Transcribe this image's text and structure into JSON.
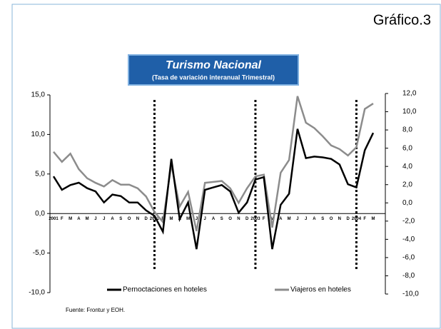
{
  "chart_data": {
    "type": "line",
    "figure_label": "Gráfico.3",
    "title": "Turismo Nacional",
    "subtitle": "(Tasa de variación interanual Trimestral)",
    "source": "Fuente: Frontur y EOH.",
    "categories": [
      "2001",
      "F",
      "M",
      "A",
      "M",
      "J",
      "J",
      "A",
      "S",
      "O",
      "N",
      "D",
      "2002",
      "F",
      "M",
      "A",
      "M",
      "J",
      "J",
      "A",
      "S",
      "O",
      "N",
      "D",
      "2003",
      "F",
      "M",
      "A",
      "M",
      "J",
      "J",
      "A",
      "S",
      "O",
      "N",
      "D",
      "2004",
      "F",
      "M"
    ],
    "series": [
      {
        "name": "Pernoctaciones en hoteles",
        "color": "#000000",
        "axis": "y",
        "values": [
          4.7,
          3.0,
          3.6,
          3.9,
          3.2,
          2.8,
          1.4,
          2.4,
          2.2,
          1.4,
          1.4,
          0.4,
          -0.3,
          -2.3,
          6.9,
          -0.7,
          1.4,
          -4.5,
          3.0,
          3.3,
          3.6,
          2.8,
          0.1,
          1.4,
          4.3,
          4.6,
          -4.5,
          1.1,
          2.5,
          10.7,
          7.0,
          7.2,
          7.1,
          6.9,
          6.2,
          3.7,
          3.3,
          8.0,
          10.2
        ]
      },
      {
        "name": "Viajeros en hoteles",
        "color": "#8c8c8c",
        "axis": "y2",
        "values": [
          5.6,
          4.5,
          5.4,
          3.7,
          2.7,
          2.2,
          1.8,
          2.5,
          2.0,
          2.0,
          1.6,
          0.7,
          -1.0,
          -2.1,
          4.2,
          -0.4,
          1.2,
          -3.1,
          2.2,
          2.3,
          2.4,
          1.6,
          0.0,
          1.6,
          2.9,
          3.1,
          -2.7,
          3.3,
          4.7,
          11.7,
          8.8,
          8.2,
          7.3,
          6.3,
          5.9,
          5.2,
          6.1,
          10.3,
          10.9
        ]
      }
    ],
    "ylim": [
      -10,
      15
    ],
    "yticks": [
      {
        "value": -10,
        "label": "-10,0"
      },
      {
        "value": -5,
        "label": "-5,0"
      },
      {
        "value": 0,
        "label": "0,0"
      },
      {
        "value": 5,
        "label": "5,0"
      },
      {
        "value": 10,
        "label": "10,0"
      },
      {
        "value": 15,
        "label": "15,0"
      }
    ],
    "y2lim": [
      -10,
      12
    ],
    "y2ticks": [
      {
        "value": -10,
        "label": "-10,0"
      },
      {
        "value": -8,
        "label": "-8,0"
      },
      {
        "value": -6,
        "label": "-6,0"
      },
      {
        "value": -4,
        "label": "-4,0"
      },
      {
        "value": -2,
        "label": "-2,0"
      },
      {
        "value": 0,
        "label": "0,0"
      },
      {
        "value": 2,
        "label": "2,0"
      },
      {
        "value": 4,
        "label": "4,0"
      },
      {
        "value": 6,
        "label": "6,0"
      },
      {
        "value": 8,
        "label": "8,0"
      },
      {
        "value": 10,
        "label": "10,0"
      },
      {
        "value": 12,
        "label": "12,0"
      }
    ],
    "grid": false
  }
}
